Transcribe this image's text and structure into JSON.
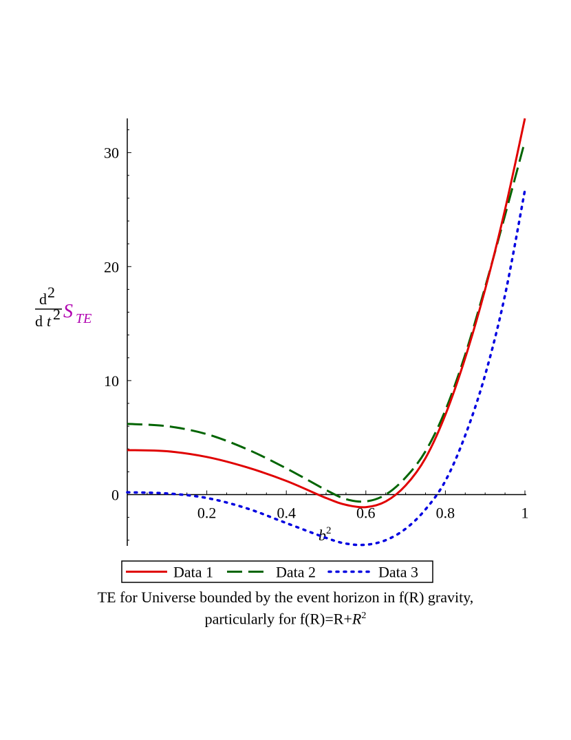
{
  "chart_data": {
    "type": "line",
    "xlabel": {
      "base": "b",
      "exponent": "2"
    },
    "ylabel": {
      "numerator": "d",
      "num_exp": "2",
      "denominator": "d",
      "den_var": "t",
      "den_exp": "2",
      "symbol": "S",
      "subscript": "TE"
    },
    "xlim": [
      0,
      1
    ],
    "ylim": [
      -4.5,
      33
    ],
    "x_ticks": [
      0.2,
      0.4,
      0.6,
      0.8,
      1
    ],
    "x_tick_labels": [
      "0.2",
      "0.4",
      "0.6",
      "0.8",
      "1"
    ],
    "y_ticks": [
      0,
      10,
      20,
      30
    ],
    "y_tick_labels": [
      "0",
      "10",
      "20",
      "30"
    ],
    "grid": false,
    "legend_position": "bottom",
    "series": [
      {
        "name": "Data 1",
        "color": "#e00000",
        "style": "solid",
        "x": [
          0,
          0.1,
          0.2,
          0.3,
          0.4,
          0.5,
          0.55,
          0.6,
          0.65,
          0.7,
          0.75,
          0.8,
          0.85,
          0.9,
          0.95,
          1.0
        ],
        "y": [
          3.9,
          3.8,
          3.3,
          2.4,
          1.2,
          -0.3,
          -0.9,
          -1.1,
          -0.6,
          0.8,
          3.2,
          7.0,
          12.0,
          18.0,
          25.0,
          33.0
        ]
      },
      {
        "name": "Data 2",
        "color": "#006400",
        "style": "dashed",
        "x": [
          0,
          0.1,
          0.2,
          0.3,
          0.4,
          0.5,
          0.55,
          0.6,
          0.65,
          0.7,
          0.75,
          0.8,
          0.85,
          0.9,
          0.95,
          1.0
        ],
        "y": [
          6.2,
          6.0,
          5.3,
          4.0,
          2.3,
          0.4,
          -0.4,
          -0.6,
          0.0,
          1.5,
          3.8,
          7.4,
          12.3,
          18.2,
          24.5,
          31.0
        ]
      },
      {
        "name": "Data 3",
        "color": "#0000e0",
        "style": "dotted",
        "x": [
          0,
          0.1,
          0.2,
          0.3,
          0.4,
          0.5,
          0.55,
          0.6,
          0.65,
          0.7,
          0.75,
          0.8,
          0.85,
          0.9,
          0.95,
          1.0
        ],
        "y": [
          0.2,
          0.1,
          -0.3,
          -1.2,
          -2.5,
          -3.8,
          -4.3,
          -4.4,
          -4.0,
          -3.0,
          -1.3,
          1.2,
          5.2,
          10.5,
          17.5,
          26.7
        ]
      }
    ]
  },
  "caption": {
    "line1": "TE for Universe bounded by the event horizon in f(R) gravity,",
    "line2_prefix": "particularly for f(R)=R+",
    "line2_var": "R",
    "line2_exp": "2"
  }
}
